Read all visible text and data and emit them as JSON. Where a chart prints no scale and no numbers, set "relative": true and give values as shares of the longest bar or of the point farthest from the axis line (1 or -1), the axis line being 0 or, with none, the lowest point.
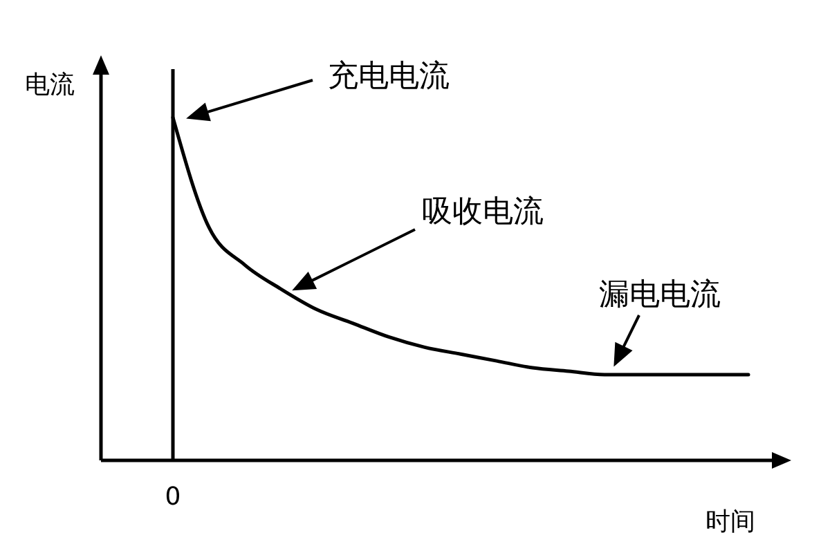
{
  "chart_data": {
    "type": "line",
    "relative": true,
    "xlabel": "时间",
    "ylabel": "电流",
    "categories": [
      null,
      null,
      null,
      null,
      null,
      null,
      null,
      null,
      null,
      null,
      null,
      null,
      null,
      null,
      null,
      null,
      null,
      null,
      null
    ],
    "series": [
      {
        "color": "#000000",
        "values": [
          null,
          null,
          1.0,
          0.68,
          0.57,
          0.5,
          0.44,
          0.4,
          0.36,
          0.33,
          0.31,
          0.29,
          0.27,
          0.26,
          0.25,
          0.25,
          0.25,
          0.25,
          0.25
        ]
      }
    ],
    "ref_lines": [
      {
        "axis": "x",
        "label": "0",
        "color": "#000000"
      }
    ],
    "annotations": [
      "充电电流",
      "吸收电流",
      "漏电电流"
    ]
  }
}
